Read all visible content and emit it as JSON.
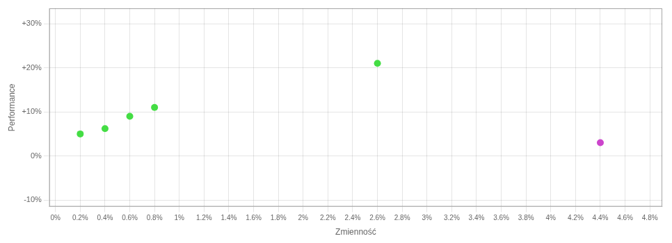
{
  "chart_data": {
    "type": "scatter",
    "xlabel": "Zmienność",
    "ylabel": "Performance",
    "series": [
      {
        "color": "#44dd44",
        "x": [
          0.002,
          0.004,
          0.006,
          0.008,
          0.026
        ],
        "values": [
          0.05,
          0.062,
          0.09,
          0.11,
          0.21
        ]
      },
      {
        "color": "#cc44cc",
        "x": [
          0.044
        ],
        "values": [
          0.03
        ]
      }
    ],
    "xlim": [
      -0.0005,
      0.049
    ],
    "ylim": [
      -0.115,
      0.335
    ],
    "xticks": [
      {
        "value": 0.0,
        "label": "0%"
      },
      {
        "value": 0.002,
        "label": "0.2%"
      },
      {
        "value": 0.004,
        "label": "0.4%"
      },
      {
        "value": 0.006,
        "label": "0.6%"
      },
      {
        "value": 0.008,
        "label": "0.8%"
      },
      {
        "value": 0.01,
        "label": "1%"
      },
      {
        "value": 0.012,
        "label": "1.2%"
      },
      {
        "value": 0.014,
        "label": "1.4%"
      },
      {
        "value": 0.016,
        "label": "1.6%"
      },
      {
        "value": 0.018,
        "label": "1.8%"
      },
      {
        "value": 0.02,
        "label": "2%"
      },
      {
        "value": 0.022,
        "label": "2.2%"
      },
      {
        "value": 0.024,
        "label": "2.4%"
      },
      {
        "value": 0.026,
        "label": "2.6%"
      },
      {
        "value": 0.028,
        "label": "2.8%"
      },
      {
        "value": 0.03,
        "label": "3%"
      },
      {
        "value": 0.032,
        "label": "3.2%"
      },
      {
        "value": 0.034,
        "label": "3.4%"
      },
      {
        "value": 0.036,
        "label": "3.6%"
      },
      {
        "value": 0.038,
        "label": "3.8%"
      },
      {
        "value": 0.04,
        "label": "4%"
      },
      {
        "value": 0.042,
        "label": "4.2%"
      },
      {
        "value": 0.044,
        "label": "4.4%"
      },
      {
        "value": 0.046,
        "label": "4.6%"
      },
      {
        "value": 0.048,
        "label": "4.8%"
      }
    ],
    "yticks": [
      {
        "value": -0.1,
        "label": "-10%"
      },
      {
        "value": 0.0,
        "label": "0%"
      },
      {
        "value": 0.1,
        "label": "+10%"
      },
      {
        "value": 0.2,
        "label": "+20%"
      },
      {
        "value": 0.3,
        "label": "+30%"
      }
    ],
    "grid": true
  }
}
